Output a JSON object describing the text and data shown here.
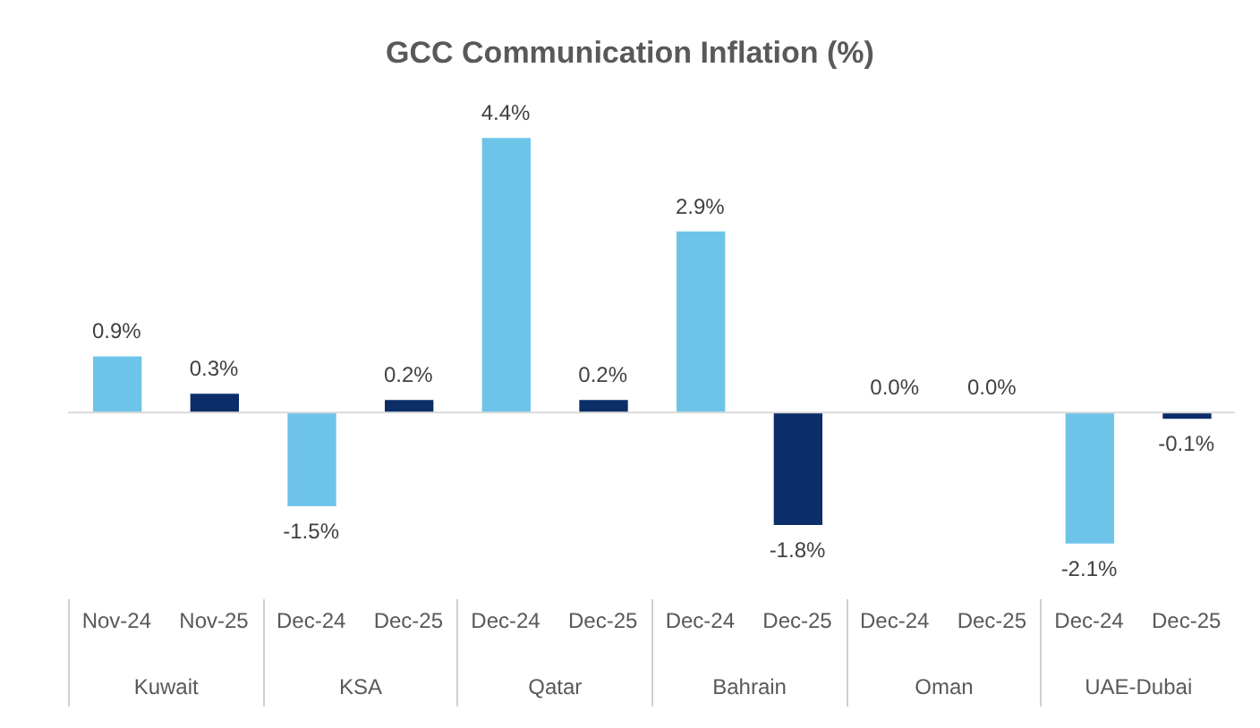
{
  "chart_data": {
    "type": "bar",
    "title": "GCC Communication Inflation (%)",
    "categories": [
      "Nov-24",
      "Nov-25",
      "Dec-24",
      "Dec-25",
      "Dec-24",
      "Dec-25",
      "Dec-24",
      "Dec-25",
      "Dec-24",
      "Dec-25",
      "Dec-24",
      "Dec-25"
    ],
    "values": [
      0.9,
      0.3,
      -1.5,
      0.2,
      4.4,
      0.2,
      2.9,
      -1.8,
      0.0,
      0.0,
      -2.1,
      -0.1
    ],
    "value_labels": [
      "0.9%",
      "0.3%",
      "-1.5%",
      "0.2%",
      "4.4%",
      "0.2%",
      "2.9%",
      "-1.8%",
      "0.0%",
      "0.0%",
      "-2.1%",
      "-0.1%"
    ],
    "colors": [
      "#6ec4e8",
      "#0b2d68",
      "#6ec4e8",
      "#0b2d68",
      "#6ec4e8",
      "#0b2d68",
      "#6ec4e8",
      "#0b2d68",
      "#6ec4e8",
      "#0b2d68",
      "#6ec4e8",
      "#0b2d68"
    ],
    "annotations": [
      "Kuwait",
      "KSA",
      "Qatar",
      "Bahrain",
      "Oman",
      "UAE-Dubai"
    ],
    "grid": false,
    "legend": false
  }
}
